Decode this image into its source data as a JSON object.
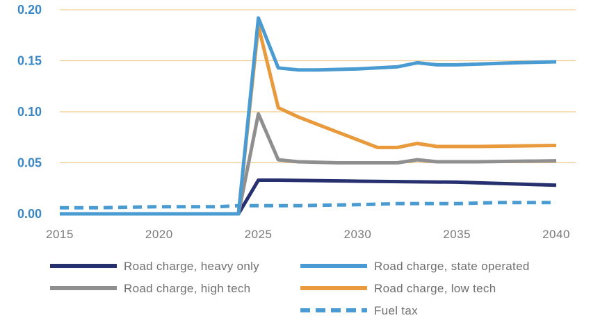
{
  "chart_data": {
    "type": "line",
    "title": "",
    "xlabel": "",
    "ylabel": "",
    "xlim": [
      2015,
      2040
    ],
    "ylim": [
      0,
      0.2
    ],
    "x_ticks": [
      "2015",
      "2020",
      "2025",
      "2030",
      "2035",
      "2040"
    ],
    "y_ticks": [
      "0.00",
      "0.05",
      "0.10",
      "0.15",
      "0.20"
    ],
    "grid": "horizontal",
    "legend_position": "bottom",
    "series": [
      {
        "name": "Road charge, heavy only",
        "color": "#27306f",
        "dash": "solid",
        "x": [
          2015,
          2024,
          2025,
          2026,
          2030,
          2035,
          2040
        ],
        "y": [
          0.0,
          0.0,
          0.033,
          0.033,
          0.032,
          0.031,
          0.028
        ]
      },
      {
        "name": "Road charge, state operated",
        "color": "#4b9bd3",
        "dash": "solid",
        "x": [
          2015,
          2024,
          2025,
          2026,
          2027,
          2028,
          2030,
          2032,
          2033,
          2034,
          2035,
          2038,
          2040
        ],
        "y": [
          0.0,
          0.0,
          0.192,
          0.143,
          0.141,
          0.141,
          0.142,
          0.144,
          0.148,
          0.146,
          0.146,
          0.148,
          0.149
        ]
      },
      {
        "name": "Road charge, high tech",
        "color": "#8f8f8f",
        "dash": "solid",
        "x": [
          2015,
          2024,
          2025,
          2026,
          2027,
          2029,
          2032,
          2033,
          2034,
          2036,
          2040
        ],
        "y": [
          0.0,
          0.0,
          0.098,
          0.053,
          0.051,
          0.05,
          0.05,
          0.053,
          0.051,
          0.051,
          0.052
        ]
      },
      {
        "name": "Road charge, low tech",
        "color": "#e89a3c",
        "dash": "solid",
        "x": [
          2015,
          2024,
          2025,
          2026,
          2027,
          2029,
          2031,
          2032,
          2033,
          2034,
          2036,
          2040
        ],
        "y": [
          0.0,
          0.0,
          0.184,
          0.104,
          0.095,
          0.08,
          0.065,
          0.065,
          0.069,
          0.066,
          0.066,
          0.067
        ]
      },
      {
        "name": "Fuel tax",
        "color": "#4b9bd3",
        "dash": "dashed",
        "x": [
          2015,
          2017,
          2020,
          2023,
          2024,
          2025,
          2027,
          2030,
          2032,
          2035,
          2037,
          2040
        ],
        "y": [
          0.006,
          0.006,
          0.007,
          0.007,
          0.008,
          0.008,
          0.008,
          0.009,
          0.01,
          0.01,
          0.011,
          0.011
        ]
      }
    ],
    "legend_order": [
      0,
      1,
      2,
      3,
      4
    ]
  }
}
